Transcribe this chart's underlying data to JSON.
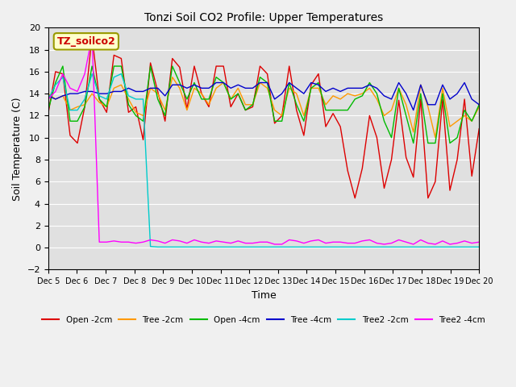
{
  "title": "Tonzi Soil CO2 Profile: Upper Temperatures",
  "xlabel": "Time",
  "ylabel": "Soil Temperature (C)",
  "ylim": [
    -2,
    20
  ],
  "xlim": [
    0,
    15
  ],
  "x_tick_labels": [
    "Dec 5",
    "Dec 6",
    "Dec 7",
    "Dec 8",
    "Dec 9",
    "Dec 10",
    "Dec 11",
    "Dec 12",
    "Dec 13",
    "Dec 14",
    "Dec 15",
    "Dec 16",
    "Dec 17",
    "Dec 18",
    "Dec 19",
    "Dec 20"
  ],
  "annotation_text": "TZ_soilco2",
  "background_color": "#f0f0f0",
  "plot_bg_color": "#e8e8e8",
  "series": [
    {
      "name": "Open -2cm",
      "color": "#dd0000",
      "y": [
        12.2,
        16.0,
        15.8,
        10.2,
        9.5,
        12.8,
        19.2,
        13.5,
        12.3,
        17.5,
        17.2,
        12.3,
        12.8,
        9.8,
        16.8,
        14.2,
        11.5,
        17.2,
        16.4,
        12.6,
        16.5,
        14.0,
        12.8,
        16.5,
        16.5,
        12.8,
        14.0,
        12.5,
        12.8,
        16.5,
        15.8,
        11.3,
        12.0,
        16.5,
        12.5,
        10.2,
        14.8,
        15.8,
        11.0,
        12.2,
        11.0,
        7.0,
        4.5,
        7.2,
        12.0,
        10.0,
        5.4,
        8.0,
        13.4,
        8.2,
        6.4,
        13.5,
        4.5,
        6.0,
        13.5,
        5.2,
        8.0,
        13.5,
        6.5,
        10.8
      ]
    },
    {
      "name": "Tree -2cm",
      "color": "#ff9900",
      "y": [
        14.0,
        13.5,
        13.8,
        12.5,
        12.8,
        13.0,
        14.0,
        13.2,
        12.8,
        14.5,
        14.8,
        13.5,
        12.3,
        12.0,
        14.5,
        14.0,
        12.5,
        15.5,
        14.5,
        12.5,
        14.5,
        14.0,
        13.0,
        14.5,
        15.0,
        13.5,
        14.5,
        13.0,
        13.0,
        15.0,
        14.5,
        12.5,
        12.0,
        14.5,
        14.0,
        12.0,
        14.5,
        14.5,
        13.0,
        13.8,
        13.5,
        14.0,
        13.8,
        14.0,
        14.5,
        13.5,
        12.0,
        12.5,
        14.5,
        13.0,
        10.5,
        14.8,
        12.8,
        10.0,
        14.5,
        11.0,
        11.5,
        12.0,
        11.5,
        12.8
      ]
    },
    {
      "name": "Open -4cm",
      "color": "#00bb00",
      "y": [
        12.5,
        15.0,
        16.5,
        11.5,
        11.5,
        12.8,
        16.5,
        13.5,
        12.8,
        16.5,
        16.5,
        13.0,
        12.0,
        11.5,
        16.5,
        13.5,
        12.0,
        16.5,
        15.0,
        13.5,
        15.0,
        13.5,
        13.5,
        15.5,
        15.0,
        13.5,
        14.0,
        12.5,
        13.0,
        15.5,
        15.0,
        11.5,
        11.5,
        15.0,
        13.0,
        11.5,
        14.5,
        15.0,
        12.5,
        12.5,
        12.5,
        12.5,
        13.5,
        13.8,
        15.0,
        14.0,
        11.5,
        10.0,
        14.5,
        12.0,
        9.5,
        14.0,
        9.5,
        9.5,
        14.0,
        9.5,
        10.0,
        12.5,
        11.5,
        13.0
      ]
    },
    {
      "name": "Tree -4cm",
      "color": "#0000cc",
      "y": [
        13.8,
        13.5,
        13.8,
        14.0,
        14.0,
        14.2,
        14.2,
        14.0,
        14.0,
        14.2,
        14.2,
        14.5,
        14.2,
        14.2,
        14.5,
        14.5,
        13.8,
        14.8,
        14.8,
        14.5,
        14.8,
        14.5,
        14.5,
        15.0,
        15.0,
        14.5,
        14.8,
        14.5,
        14.5,
        15.0,
        15.0,
        13.5,
        14.0,
        15.0,
        14.5,
        14.0,
        15.0,
        14.8,
        14.2,
        14.5,
        14.2,
        14.5,
        14.5,
        14.5,
        14.8,
        14.5,
        13.8,
        13.5,
        15.0,
        14.0,
        12.5,
        14.8,
        13.0,
        13.0,
        14.8,
        13.5,
        14.0,
        15.0,
        13.5,
        13.0
      ]
    },
    {
      "name": "Tree2 -2cm",
      "color": "#00cccc",
      "y": [
        13.5,
        14.8,
        15.5,
        12.5,
        12.5,
        13.5,
        15.8,
        13.8,
        13.5,
        15.5,
        15.8,
        13.8,
        13.5,
        13.5,
        0.1,
        0.05,
        0.05,
        0.05,
        0.05,
        0.05,
        0.05,
        0.05,
        0.05,
        0.05,
        0.05,
        0.05,
        0.05,
        0.05,
        0.05,
        0.05,
        0.05,
        0.05,
        0.05,
        0.05,
        0.05,
        0.05,
        0.05,
        0.05,
        0.05,
        0.05,
        0.05,
        0.05,
        0.05,
        0.05,
        0.05,
        0.05,
        0.05,
        0.05,
        0.05,
        0.05,
        0.05,
        0.05,
        0.05,
        0.05,
        0.05,
        0.05,
        0.05,
        0.05,
        0.05,
        0.05
      ]
    },
    {
      "name": "Tree2 -4cm",
      "color": "#ff00ff",
      "y": [
        13.5,
        14.2,
        15.8,
        14.5,
        14.2,
        15.8,
        19.2,
        0.5,
        0.5,
        0.6,
        0.5,
        0.5,
        0.4,
        0.5,
        0.7,
        0.6,
        0.4,
        0.7,
        0.6,
        0.4,
        0.7,
        0.5,
        0.4,
        0.6,
        0.5,
        0.4,
        0.6,
        0.4,
        0.4,
        0.5,
        0.5,
        0.3,
        0.3,
        0.7,
        0.6,
        0.4,
        0.6,
        0.7,
        0.4,
        0.5,
        0.5,
        0.4,
        0.4,
        0.6,
        0.7,
        0.4,
        0.3,
        0.4,
        0.7,
        0.5,
        0.3,
        0.7,
        0.4,
        0.3,
        0.6,
        0.3,
        0.4,
        0.6,
        0.4,
        0.5
      ]
    }
  ]
}
